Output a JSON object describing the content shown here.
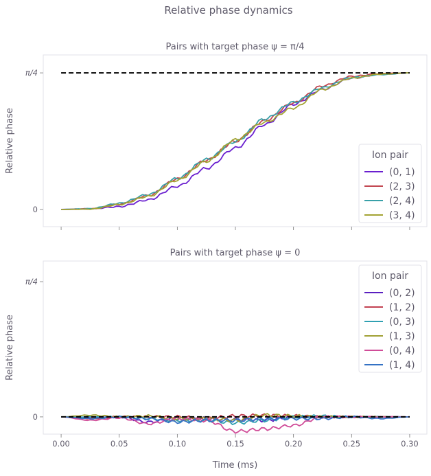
{
  "suptitle": "Relative phase dynamics",
  "chart_data": [
    {
      "type": "line",
      "title": "Pairs with target phase ψ = π/4",
      "xlabel": "",
      "ylabel": "Relative phase",
      "xlim": [
        -0.0154,
        0.3148
      ],
      "ylim": [
        -0.099,
        0.888
      ],
      "xticks": [
        0,
        0.05,
        0.1,
        0.15,
        0.2,
        0.25,
        0.3
      ],
      "xtick_labels": [],
      "yticks": [
        {
          "value": 0,
          "label": "0"
        },
        {
          "value": 0.785,
          "label": "π/4"
        }
      ],
      "target": {
        "value": 0.785,
        "style": "dashed",
        "color": "#000000"
      },
      "legend": {
        "title": "Ion pair",
        "placement": "lower-right"
      },
      "x": [
        0,
        0.025,
        0.05,
        0.075,
        0.1,
        0.125,
        0.15,
        0.175,
        0.2,
        0.225,
        0.25,
        0.275,
        0.3
      ],
      "series": [
        {
          "name": "(0, 1)",
          "color": "#6a1fcf",
          "values": [
            0,
            0.004,
            0.016,
            0.055,
            0.133,
            0.236,
            0.353,
            0.487,
            0.604,
            0.69,
            0.754,
            0.777,
            0.785
          ]
        },
        {
          "name": "(2, 3)",
          "color": "#c2454f",
          "values": [
            0,
            0.003,
            0.03,
            0.08,
            0.175,
            0.283,
            0.392,
            0.51,
            0.612,
            0.71,
            0.765,
            0.781,
            0.785
          ]
        },
        {
          "name": "(2, 4)",
          "color": "#38a0a8",
          "values": [
            0,
            0.004,
            0.035,
            0.085,
            0.178,
            0.287,
            0.39,
            0.52,
            0.616,
            0.7,
            0.758,
            0.775,
            0.785
          ]
        },
        {
          "name": "(3, 4)",
          "color": "#a3a332",
          "values": [
            0,
            0.002,
            0.028,
            0.075,
            0.168,
            0.276,
            0.4,
            0.5,
            0.583,
            0.69,
            0.755,
            0.778,
            0.785
          ]
        }
      ]
    },
    {
      "type": "line",
      "title": "Pairs with target phase ψ = 0",
      "xlabel": "Time (ms)",
      "ylabel": "Relative phase",
      "xlim": [
        -0.0154,
        0.3148
      ],
      "ylim": [
        -0.1,
        0.905
      ],
      "xticks": [
        0,
        0.05,
        0.1,
        0.15,
        0.2,
        0.25,
        0.3
      ],
      "xtick_labels": [
        "0.00",
        "0.05",
        "0.10",
        "0.15",
        "0.20",
        "0.25",
        "0.30"
      ],
      "yticks": [
        {
          "value": 0,
          "label": "0"
        },
        {
          "value": 0.785,
          "label": "π/4"
        }
      ],
      "target": {
        "value": 0,
        "style": "dashed",
        "color": "#000000"
      },
      "legend": {
        "title": "Ion pair",
        "placement": "upper-right"
      },
      "x": [
        0,
        0.025,
        0.05,
        0.075,
        0.1,
        0.125,
        0.15,
        0.175,
        0.2,
        0.225,
        0.25,
        0.275,
        0.3
      ],
      "series": [
        {
          "name": "(0, 2)",
          "color": "#5a1fc0",
          "values": [
            0,
            -0.005,
            0.0,
            -0.03,
            -0.01,
            -0.01,
            -0.015,
            -0.02,
            0.0,
            0.0,
            0.0,
            0.0,
            0
          ]
        },
        {
          "name": "(1, 2)",
          "color": "#c24050",
          "values": [
            0,
            -0.01,
            0.0,
            0.0,
            0.0,
            -0.01,
            0.005,
            0.008,
            0.005,
            0.0,
            0.0,
            0.0,
            0
          ]
        },
        {
          "name": "(0, 3)",
          "color": "#30a0b2",
          "values": [
            0,
            0.0,
            0.0,
            -0.01,
            -0.02,
            -0.02,
            -0.035,
            -0.02,
            0.0,
            0.005,
            0.0,
            0.0,
            0
          ]
        },
        {
          "name": "(1, 3)",
          "color": "#a0a034",
          "values": [
            0,
            0.01,
            0.0,
            0.005,
            -0.01,
            -0.01,
            -0.02,
            0.01,
            0.005,
            0.0,
            0.0,
            0.0,
            0
          ]
        },
        {
          "name": "(0, 4)",
          "color": "#d04c98",
          "values": [
            0,
            -0.02,
            -0.005,
            -0.04,
            -0.01,
            -0.02,
            -0.085,
            -0.07,
            -0.05,
            0.0,
            0.0,
            0.0,
            0
          ]
        },
        {
          "name": "(1, 4)",
          "color": "#3472c4",
          "values": [
            0,
            -0.01,
            0.0,
            -0.01,
            -0.03,
            -0.02,
            -0.02,
            -0.01,
            -0.01,
            -0.01,
            0.0,
            -0.01,
            0
          ]
        }
      ]
    }
  ]
}
